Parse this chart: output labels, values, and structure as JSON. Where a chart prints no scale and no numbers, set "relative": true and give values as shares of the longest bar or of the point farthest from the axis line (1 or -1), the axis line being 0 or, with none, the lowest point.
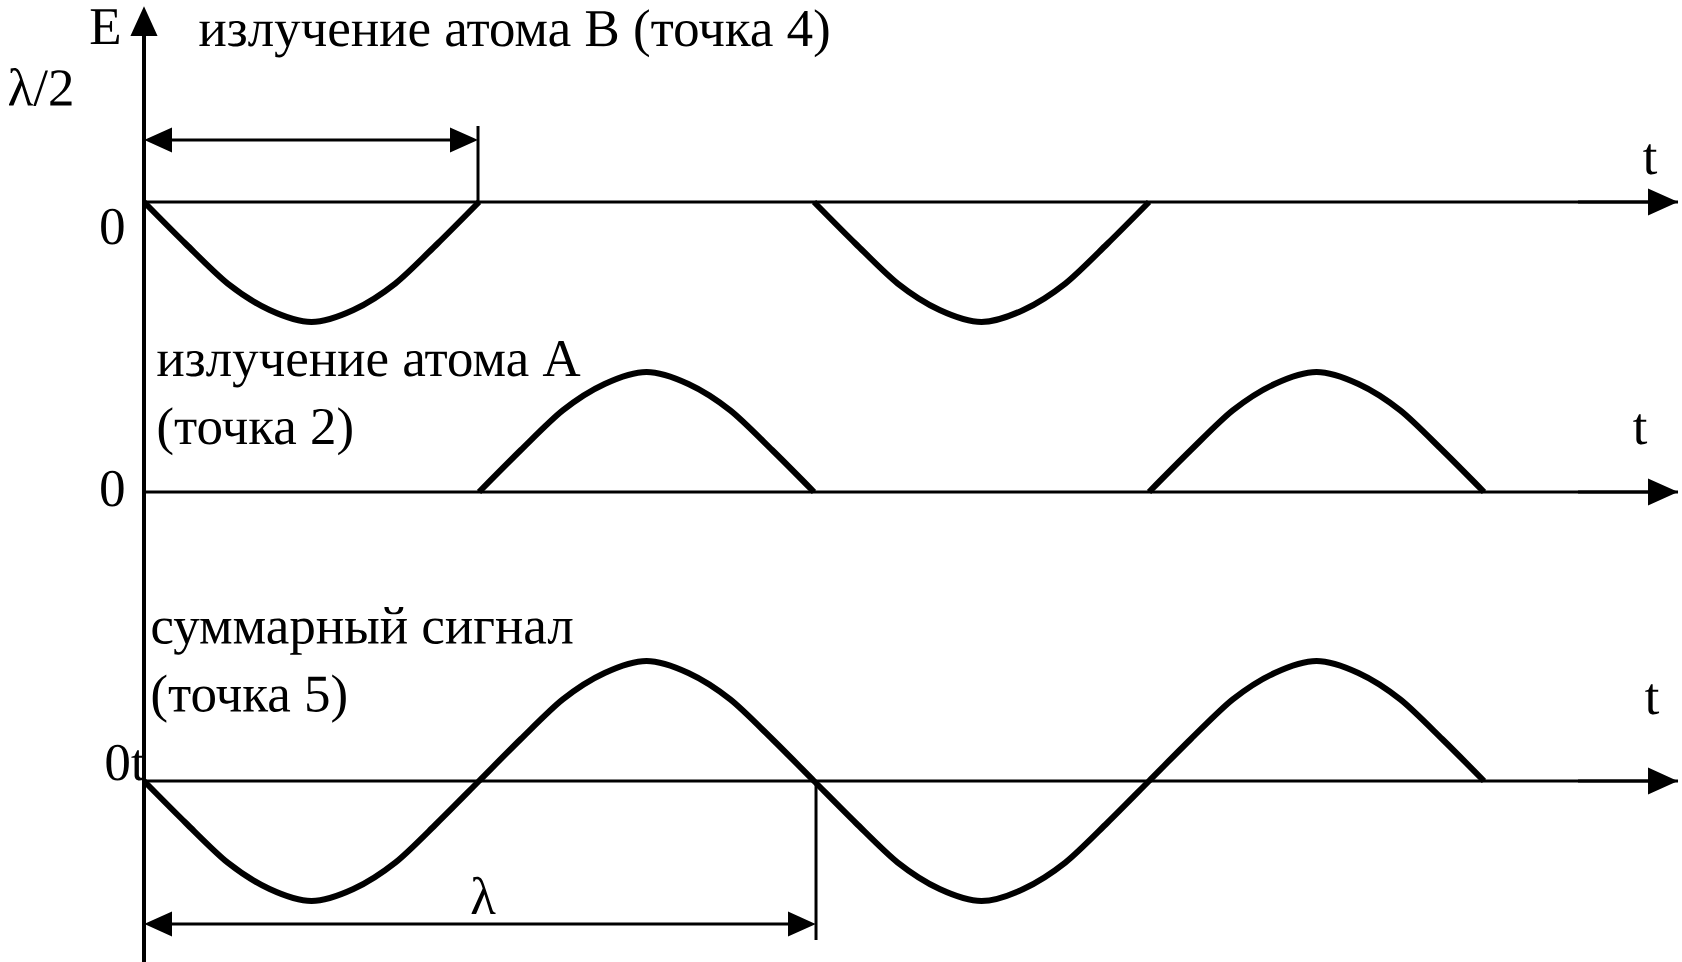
{
  "chart_data": [
    {
      "type": "line",
      "title": "излучение атома В (точка 4)",
      "xlabel": "t",
      "ylabel": "E",
      "relative": true,
      "categories": [
        null,
        null,
        null,
        null,
        null,
        null,
        null,
        null,
        null,
        null,
        null,
        null,
        null,
        null,
        null,
        null,
        null,
        null,
        null,
        null,
        null,
        null,
        null,
        null,
        null,
        null,
        null,
        null,
        null,
        null,
        null,
        null,
        null
      ],
      "series": [
        {
          "color": "#000000",
          "values": [
            0,
            -0.35,
            -0.68,
            -0.9,
            -1,
            -0.9,
            -0.68,
            -0.35,
            0,
            null,
            null,
            null,
            null,
            null,
            null,
            null,
            null,
            null,
            null,
            null,
            null,
            null,
            null,
            null,
            null,
            null,
            null,
            null,
            null,
            null,
            null,
            null,
            null
          ]
        },
        {
          "color": "#000000",
          "values": [
            null,
            null,
            null,
            null,
            null,
            null,
            null,
            null,
            null,
            null,
            null,
            null,
            null,
            null,
            null,
            null,
            0,
            -0.35,
            -0.68,
            -0.9,
            -1,
            -0.9,
            -0.68,
            -0.35,
            0,
            null,
            null,
            null,
            null,
            null,
            null,
            null,
            null
          ]
        }
      ],
      "annotations": [
        "λ/2",
        "0"
      ]
    },
    {
      "type": "line",
      "title": "излучение атома А (точка 2)",
      "xlabel": "t",
      "relative": true,
      "categories": [
        null,
        null,
        null,
        null,
        null,
        null,
        null,
        null,
        null,
        null,
        null,
        null,
        null,
        null,
        null,
        null,
        null,
        null,
        null,
        null,
        null,
        null,
        null,
        null,
        null,
        null,
        null,
        null,
        null,
        null,
        null,
        null,
        null
      ],
      "series": [
        {
          "color": "#000000",
          "values": [
            null,
            null,
            null,
            null,
            null,
            null,
            null,
            null,
            0,
            0.35,
            0.68,
            0.9,
            1,
            0.9,
            0.68,
            0.35,
            0,
            null,
            null,
            null,
            null,
            null,
            null,
            null,
            null,
            null,
            null,
            null,
            null,
            null,
            null,
            null,
            null
          ]
        },
        {
          "color": "#000000",
          "values": [
            null,
            null,
            null,
            null,
            null,
            null,
            null,
            null,
            null,
            null,
            null,
            null,
            null,
            null,
            null,
            null,
            null,
            null,
            null,
            null,
            null,
            null,
            null,
            null,
            0,
            0.35,
            0.68,
            0.9,
            1,
            0.9,
            0.68,
            0.35,
            0
          ]
        }
      ],
      "annotations": [
        "0"
      ]
    },
    {
      "type": "line",
      "title": "суммарный сигнал (точка 5)",
      "xlabel": "t",
      "relative": true,
      "categories": [
        null,
        null,
        null,
        null,
        null,
        null,
        null,
        null,
        null,
        null,
        null,
        null,
        null,
        null,
        null,
        null,
        null,
        null,
        null,
        null,
        null,
        null,
        null,
        null,
        null,
        null,
        null,
        null,
        null,
        null,
        null,
        null,
        null
      ],
      "series": [
        {
          "color": "#000000",
          "values": [
            0,
            -0.35,
            -0.68,
            -0.9,
            -1,
            -0.9,
            -0.68,
            -0.35,
            0,
            0.35,
            0.68,
            0.9,
            1,
            0.9,
            0.68,
            0.35,
            0,
            -0.35,
            -0.68,
            -0.9,
            -1,
            -0.9,
            -0.68,
            -0.35,
            0,
            0.35,
            0.68,
            0.9,
            1,
            0.9,
            0.68,
            0.35,
            0
          ]
        }
      ],
      "annotations": [
        "0t",
        "λ"
      ]
    }
  ]
}
